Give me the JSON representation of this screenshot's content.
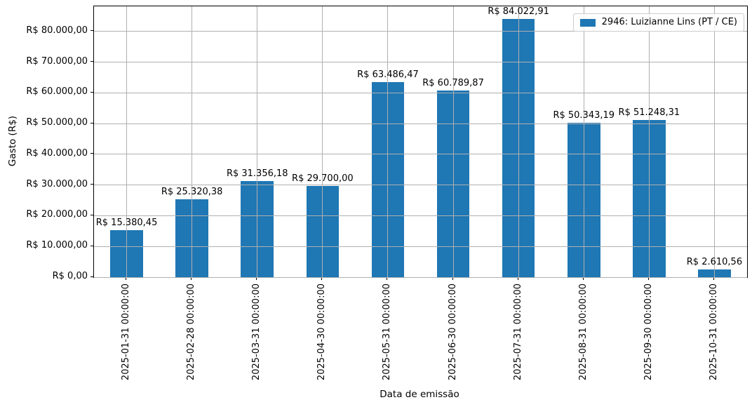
{
  "chart_data": {
    "type": "bar",
    "title": "",
    "xlabel": "Data de emissão",
    "ylabel": "Gasto (R$)",
    "categories": [
      "2025-01-31 00:00:00",
      "2025-02-28 00:00:00",
      "2025-03-31 00:00:00",
      "2025-04-30 00:00:00",
      "2025-05-31 00:00:00",
      "2025-06-30 00:00:00",
      "2025-07-31 00:00:00",
      "2025-08-31 00:00:00",
      "2025-09-30 00:00:00",
      "2025-10-31 00:00:00"
    ],
    "values": [
      15380.45,
      25320.38,
      31356.18,
      29700.0,
      63486.47,
      60789.87,
      84022.91,
      50343.19,
      51248.31,
      2610.56
    ],
    "bar_labels": [
      "R$ 15.380,45",
      "R$ 25.320,38",
      "R$ 31.356,18",
      "R$ 29.700,00",
      "R$ 63.486,47",
      "R$ 60.789,87",
      "R$ 84.022,91",
      "R$ 50.343,19",
      "R$ 51.248,31",
      "R$ 2.610,56"
    ],
    "ytick_values": [
      0,
      10000,
      20000,
      30000,
      40000,
      50000,
      60000,
      70000,
      80000
    ],
    "ytick_labels": [
      "R$ 0,00",
      "R$ 10.000,00",
      "R$ 20.000,00",
      "R$ 30.000,00",
      "R$ 40.000,00",
      "R$ 50.000,00",
      "R$ 60.000,00",
      "R$ 70.000,00",
      "R$ 80.000,00"
    ],
    "ylim": [
      0,
      88224
    ],
    "grid": true,
    "grid_over_bars": true,
    "legend": {
      "label": "2946: Luizianne Lins (PT / CE)",
      "position": "upper right"
    },
    "colors": {
      "bar": "#1f77b4",
      "grid": "#b0b0b0",
      "spine": "#000000",
      "legend_border": "#cccccc"
    }
  }
}
